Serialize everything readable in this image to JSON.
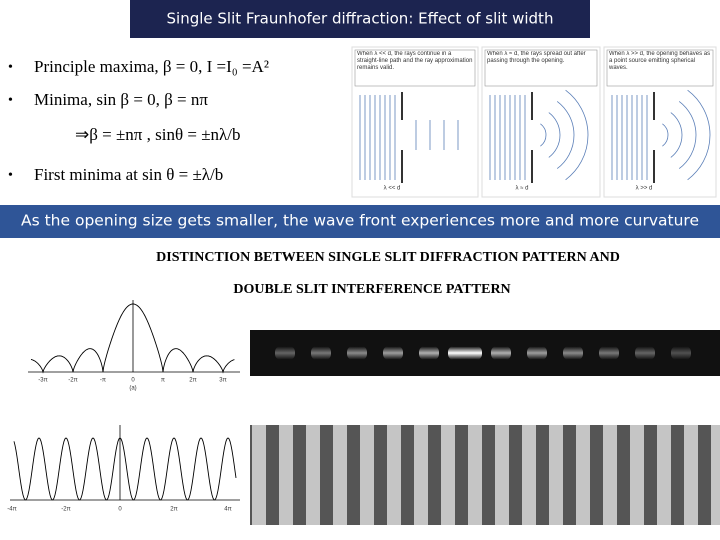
{
  "header": {
    "title": "Single Slit Fraunhofer diffraction: Effect of slit width"
  },
  "bullets": [
    "Principle maxima,  β = 0, I =I₀ =A²",
    "Minima, sin β = 0,  β = nπ",
    "⇒β = ±nπ     ,  sinθ = ±nλ/b",
    "First minima at sin θ = ±λ/b"
  ],
  "figure": {
    "panels": [
      {
        "caption": "When λ << d, the rays continue in a straight-line path and the ray approximation remains valid.",
        "label": "λ << d"
      },
      {
        "caption": "When λ ≈ d, the rays spread out after passing through the opening.",
        "label": "λ ≈ d"
      },
      {
        "caption": "When λ >> d, the opening behaves as a point source emitting spherical waves.",
        "label": "λ >> d"
      }
    ]
  },
  "banner": "As the opening size gets smaller, the wave front experiences more and more curvature",
  "heading": [
    "DISTINCTION BETWEEN SINGLE SLIT DIFFRACTION PATTERN  AND",
    "DOUBLE SLIT INTERFERENCE PATTERN"
  ],
  "graph_single": {
    "ticks": [
      "-3π",
      "-2π",
      "-π",
      "0",
      "π",
      "2π",
      "3π"
    ],
    "label": "(a)"
  },
  "graph_double": {
    "ticks": [
      "-4π",
      "-2π",
      "0",
      "2π",
      "4π"
    ]
  }
}
